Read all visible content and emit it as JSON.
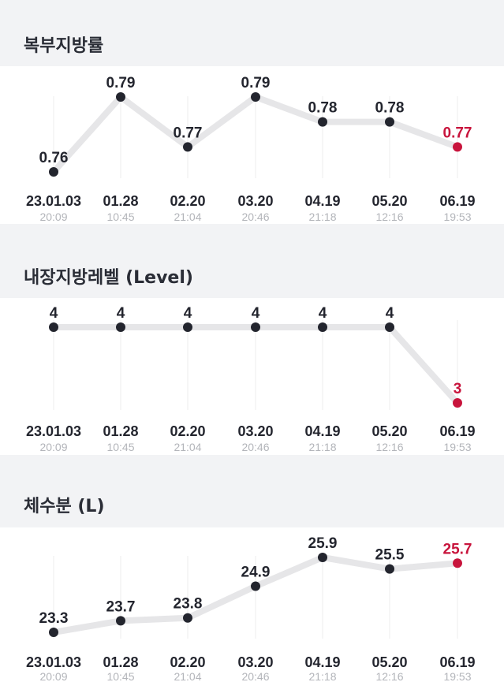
{
  "chart_data": [
    {
      "type": "line",
      "title": "복부지방률",
      "categories": [
        "23.01.03",
        "01.28",
        "02.20",
        "03.20",
        "04.19",
        "05.20",
        "06.19"
      ],
      "times": [
        "20:09",
        "10:45",
        "21:04",
        "20:46",
        "21:18",
        "12:16",
        "19:53"
      ],
      "values": [
        0.76,
        0.79,
        0.77,
        0.79,
        0.78,
        0.78,
        0.77
      ],
      "value_labels": [
        "0.76",
        "0.79",
        "0.77",
        "0.79",
        "0.78",
        "0.78",
        "0.77"
      ],
      "highlight_color": "#c8143c",
      "point_color": "#23252e",
      "line_color": "#e6e6e8"
    },
    {
      "type": "line",
      "title": "내장지방레벨 (Level)",
      "categories": [
        "23.01.03",
        "01.28",
        "02.20",
        "03.20",
        "04.19",
        "05.20",
        "06.19"
      ],
      "times": [
        "20:09",
        "10:45",
        "21:04",
        "20:46",
        "21:18",
        "12:16",
        "19:53"
      ],
      "values": [
        4,
        4,
        4,
        4,
        4,
        4,
        3
      ],
      "value_labels": [
        "4",
        "4",
        "4",
        "4",
        "4",
        "4",
        "3"
      ],
      "highlight_color": "#c8143c",
      "point_color": "#23252e",
      "line_color": "#e6e6e8"
    },
    {
      "type": "line",
      "title": "체수분 (L)",
      "categories": [
        "23.01.03",
        "01.28",
        "02.20",
        "03.20",
        "04.19",
        "05.20",
        "06.19"
      ],
      "times": [
        "20:09",
        "10:45",
        "21:04",
        "20:46",
        "21:18",
        "12:16",
        "19:53"
      ],
      "values": [
        23.3,
        23.7,
        23.8,
        24.9,
        25.9,
        25.5,
        25.7
      ],
      "value_labels": [
        "23.3",
        "23.7",
        "23.8",
        "24.9",
        "25.9",
        "25.5",
        "25.7"
      ],
      "highlight_color": "#c8143c",
      "point_color": "#23252e",
      "line_color": "#e6e6e8"
    }
  ]
}
